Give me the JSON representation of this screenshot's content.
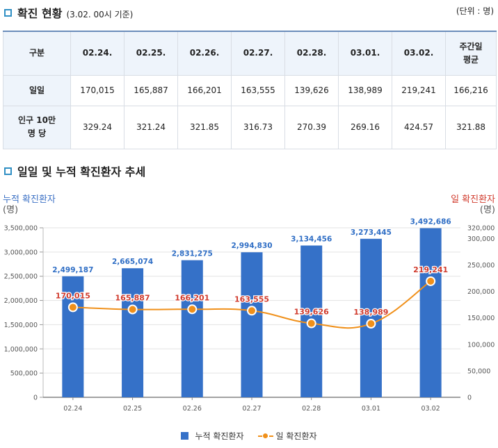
{
  "section1": {
    "title": "확진 현황",
    "subtitle": "(3.02. 00시 기준)",
    "unit": "(단위 : 명)"
  },
  "table": {
    "header": [
      "구분",
      "02.24.",
      "02.25.",
      "02.26.",
      "02.27.",
      "02.28.",
      "03.01.",
      "03.02.",
      "주간일\n평균"
    ],
    "rows": [
      [
        "일일",
        "170,015",
        "165,887",
        "166,201",
        "163,555",
        "139,626",
        "138,989",
        "219,241",
        "166,216"
      ],
      [
        "인구 10만\n명 당",
        "329.24",
        "321.24",
        "321.85",
        "316.73",
        "270.39",
        "269.16",
        "424.57",
        "321.88"
      ]
    ]
  },
  "section2": {
    "title": "일일 및 누적 확진환자 추세"
  },
  "chart_data": {
    "type": "bar",
    "categories": [
      "02.24",
      "02.25",
      "02.26",
      "02.27",
      "02.28",
      "03.01",
      "03.02"
    ],
    "series": [
      {
        "name": "누적 확진환자",
        "type": "bar",
        "axis": "left",
        "values": [
          2499187,
          2665074,
          2831275,
          2994830,
          3134456,
          3273445,
          3492686
        ],
        "labels": [
          "2,499,187",
          "2,665,074",
          "2,831,275",
          "2,994,830",
          "3,134,456",
          "3,273,445",
          "3,492,686"
        ]
      },
      {
        "name": "일 확진환자",
        "type": "line",
        "axis": "right",
        "values": [
          170015,
          165887,
          166201,
          163555,
          139626,
          138989,
          219241
        ],
        "labels": [
          "170,015",
          "165,887",
          "166,201",
          "163,555",
          "139,626",
          "138,989",
          "219,241"
        ]
      }
    ],
    "left_axis": {
      "label": "누적 확진환자",
      "unit": "(명)",
      "range": [
        0,
        3500000
      ],
      "ticks": [
        "3,500,000",
        "3,000,000",
        "2,500,000",
        "2,000,000",
        "1,500,000",
        "1,000,000",
        "500,000",
        "0"
      ]
    },
    "right_axis": {
      "label": "일 확진환자",
      "unit": "(명)",
      "range": [
        0,
        320000
      ],
      "ticks": [
        "320,000",
        "300,000",
        "250,000",
        "200,000",
        "150,000",
        "100,000",
        "50,000",
        "0"
      ]
    },
    "grid": true,
    "legend": "bottom",
    "colors": {
      "bar": "#3571c8",
      "line": "#f0901a",
      "bar_label": "#2f6ec5",
      "line_label": "#d03a2c",
      "left_axis_title": "#3a6fc4",
      "right_axis_title": "#d03a2c"
    }
  }
}
